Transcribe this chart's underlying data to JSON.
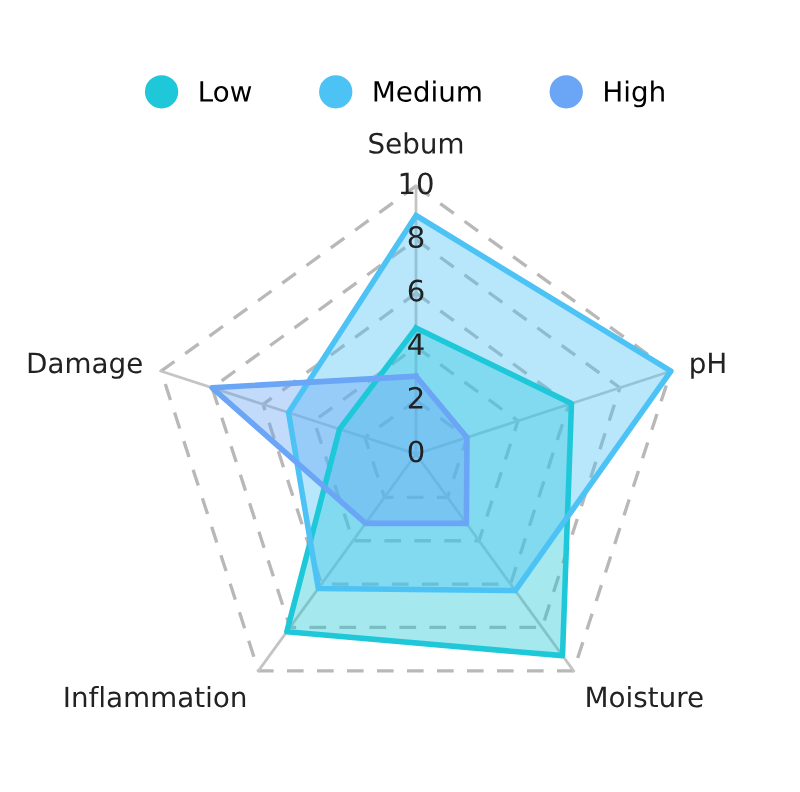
{
  "chart_data": {
    "type": "radar",
    "categories": [
      "Sebum",
      "pH",
      "Moisture",
      "Inflammation",
      "Damage"
    ],
    "ylim": [
      0,
      10
    ],
    "yticks": [
      0,
      2,
      4,
      6,
      8,
      10
    ],
    "grid": true,
    "legend": "top",
    "marker": "none",
    "series": [
      {
        "name": "Low",
        "color": "#1ec8d8",
        "values": [
          4.7,
          6.1,
          9.3,
          8.2,
          3.0
        ]
      },
      {
        "name": "Medium",
        "color": "#4dc3f5",
        "values": [
          8.9,
          10,
          6.3,
          6.2,
          5.0
        ]
      },
      {
        "name": "High",
        "color": "#6aa6f5",
        "values": [
          2.9,
          2.0,
          3.2,
          3.2,
          8.0
        ]
      }
    ]
  }
}
